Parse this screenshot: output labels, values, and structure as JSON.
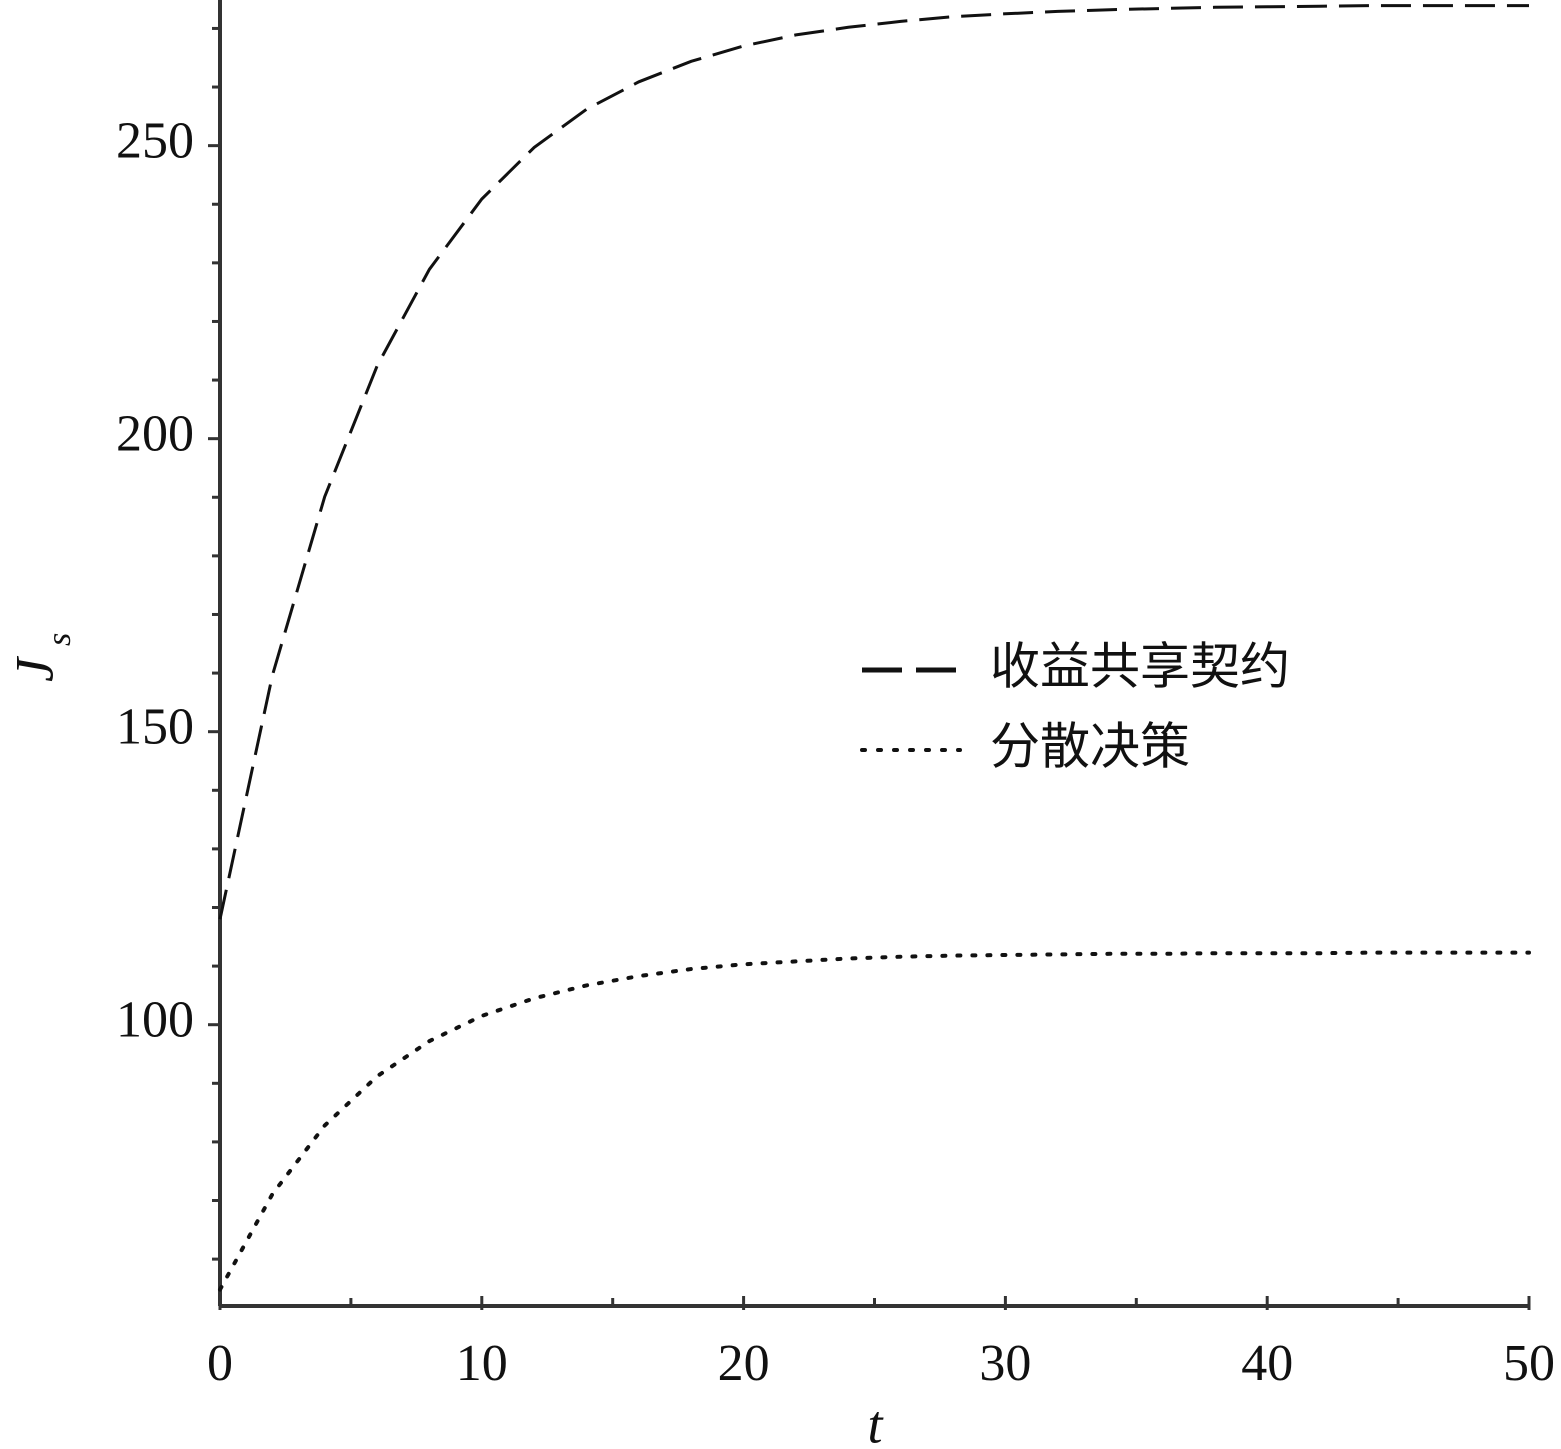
{
  "chart_data": {
    "type": "line",
    "xlabel": "t",
    "ylabel": "J",
    "ylabel_subscript": "s",
    "x": [
      0,
      2,
      4,
      6,
      8,
      10,
      12,
      14,
      16,
      18,
      20,
      22,
      24,
      26,
      28,
      30,
      32,
      34,
      36,
      38,
      40,
      42,
      44,
      46,
      48,
      50
    ],
    "series": [
      {
        "name": "收益共享契约",
        "color": "#111111",
        "style": "dashed",
        "values": [
          118,
          159.6,
          190.1,
          212.4,
          228.9,
          240.9,
          249.7,
          256.2,
          260.9,
          264.4,
          267.0,
          268.9,
          270.2,
          271.2,
          272.0,
          272.5,
          272.9,
          273.2,
          273.4,
          273.6,
          273.7,
          273.8,
          273.9,
          273.9,
          273.9,
          273.9
        ]
      },
      {
        "name": "分散决策",
        "color": "#111111",
        "style": "dotted",
        "values": [
          54.8,
          71.1,
          82.8,
          91.2,
          97.2,
          101.5,
          104.5,
          106.7,
          108.3,
          109.5,
          110.3,
          110.8,
          111.3,
          111.6,
          111.8,
          111.9,
          112.0,
          112.1,
          112.1,
          112.2,
          112.2,
          112.2,
          112.3,
          112.3,
          112.3,
          112.3
        ]
      }
    ],
    "xlim": [
      0,
      50
    ],
    "xticks": [
      0,
      10,
      20,
      30,
      40,
      50
    ],
    "xminorticks": [
      5,
      15,
      25,
      35,
      45
    ],
    "ylim": [
      52,
      274
    ],
    "yticks": [
      100,
      150,
      200,
      250
    ],
    "yminorticks": [
      60,
      70,
      80,
      90,
      110,
      120,
      130,
      140,
      160,
      170,
      180,
      190,
      210,
      220,
      230,
      240,
      260,
      270
    ],
    "grid": false
  }
}
